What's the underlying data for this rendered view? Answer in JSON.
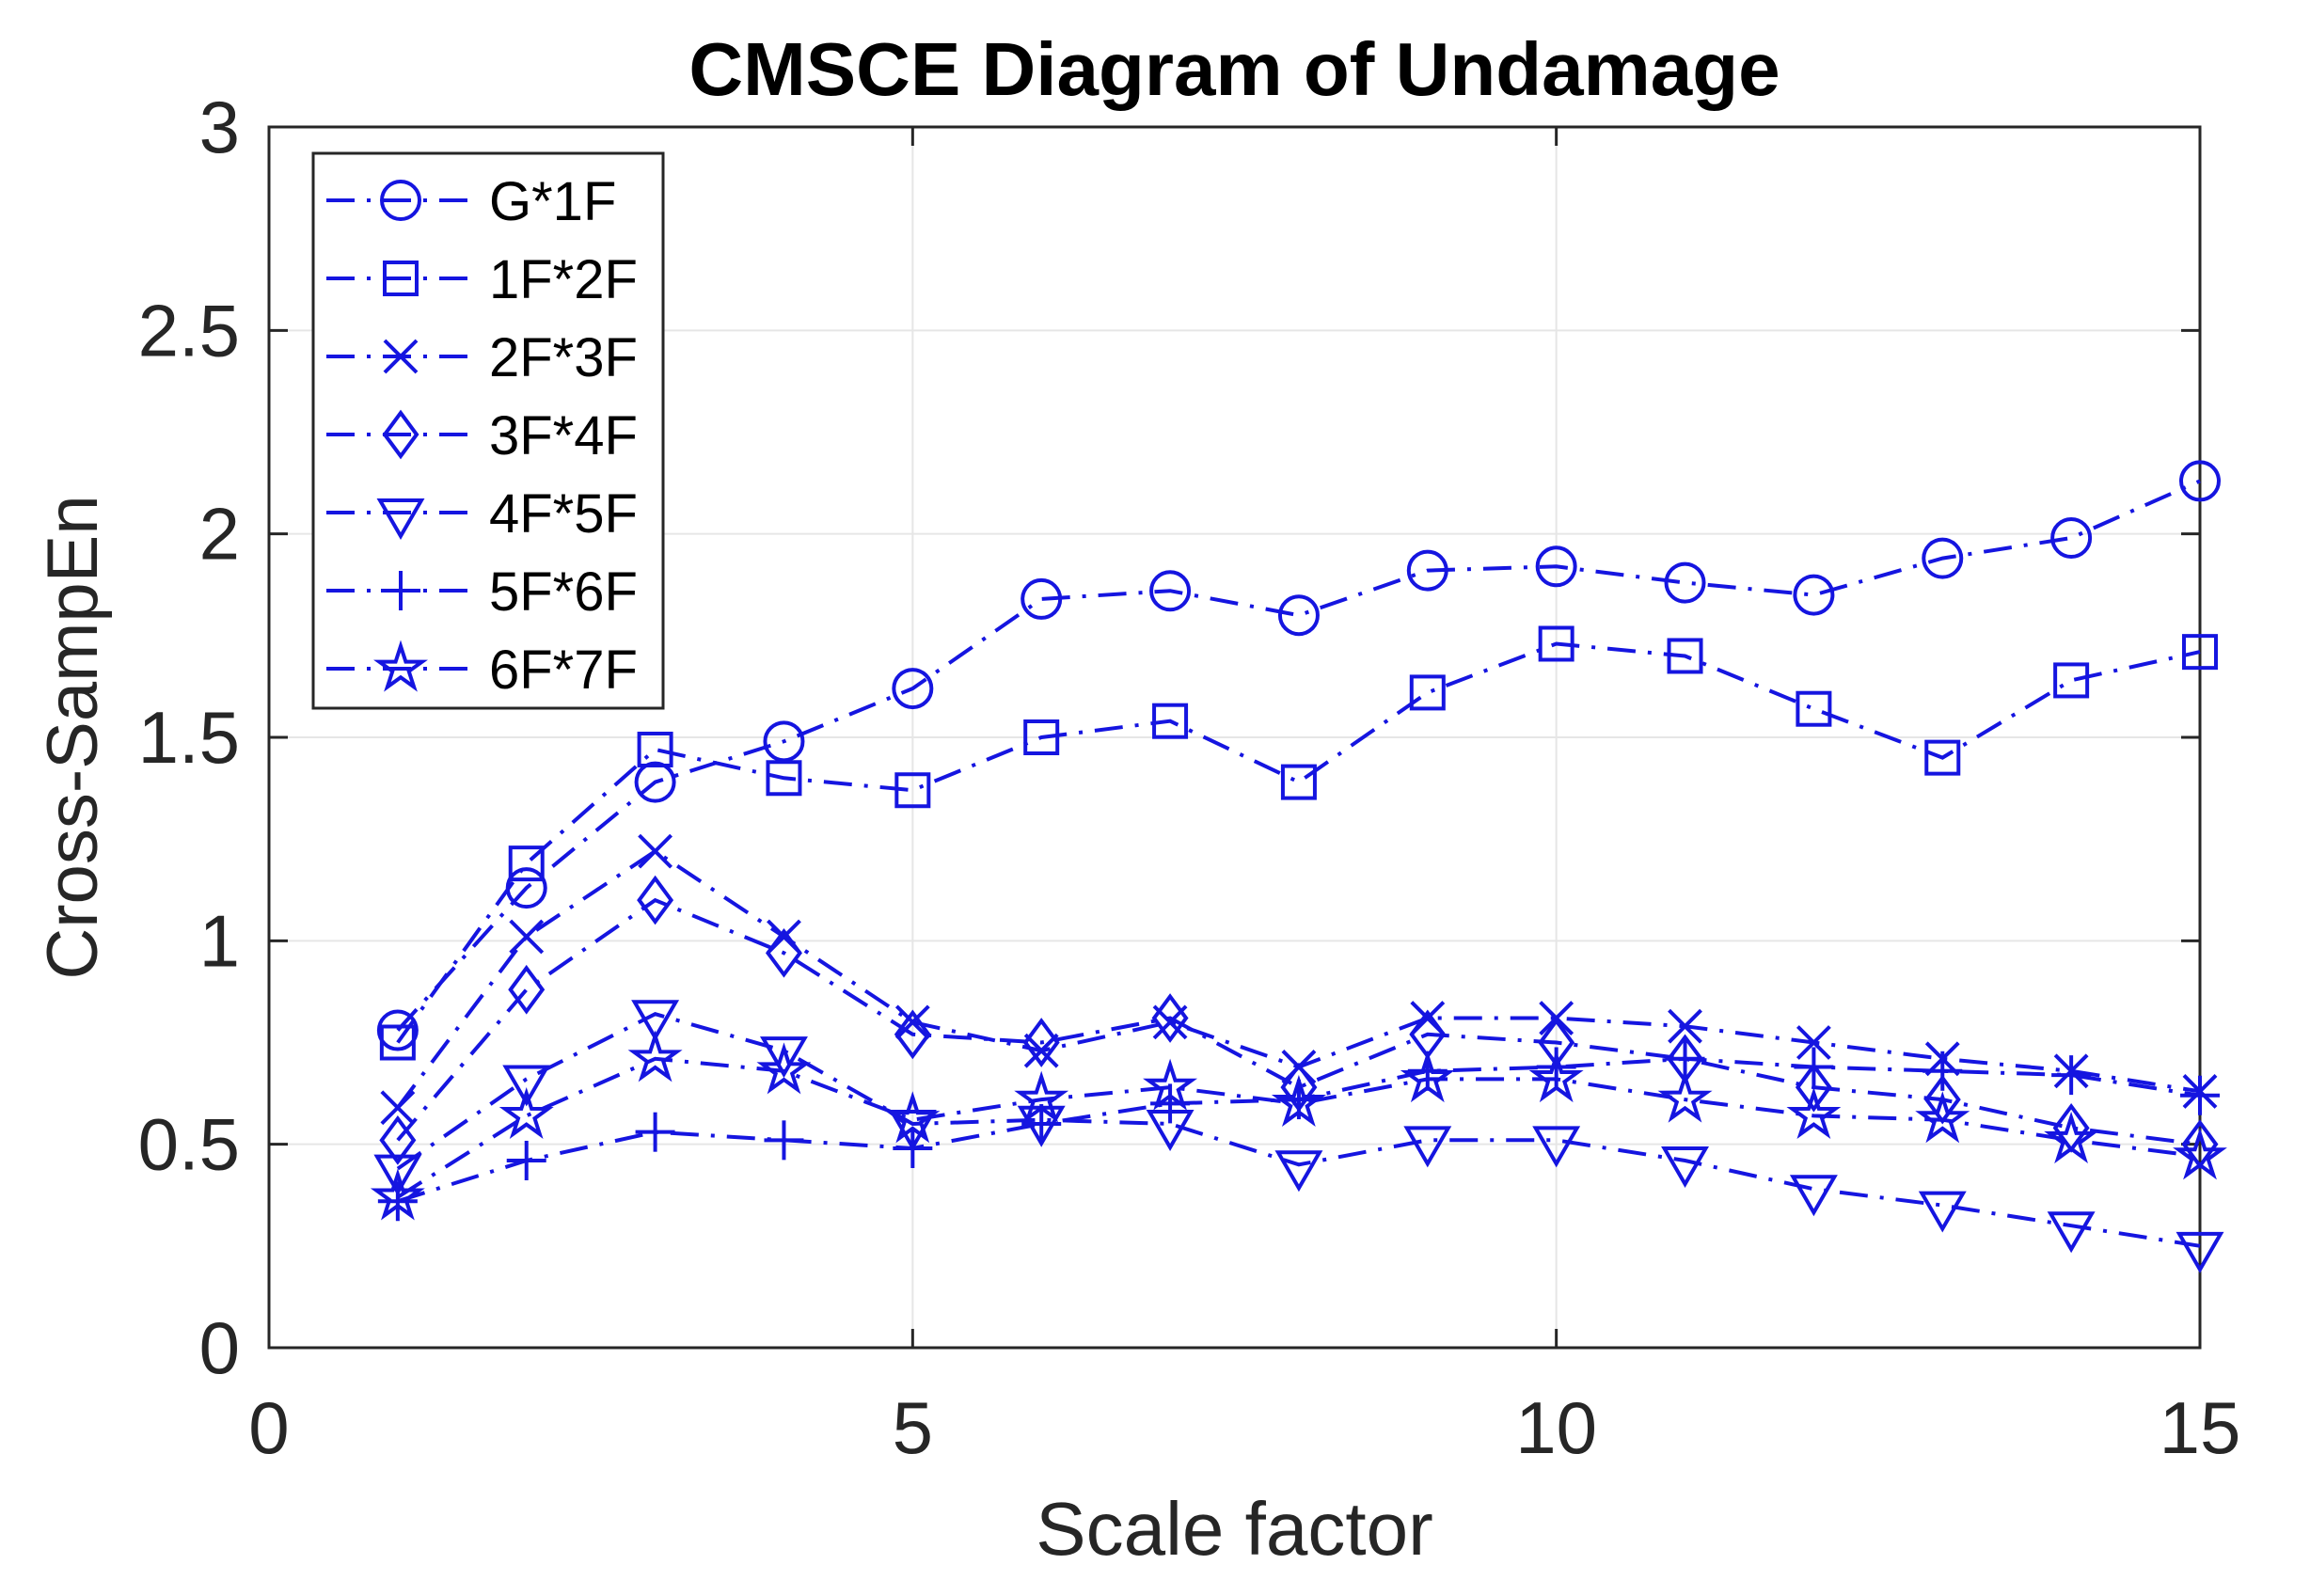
{
  "chart_data": {
    "type": "line",
    "title": "CMSCE Diagram of Undamage",
    "xlabel": "Scale factor",
    "ylabel": "Cross-SampEn",
    "xlim": [
      0,
      15
    ],
    "ylim": [
      0,
      3
    ],
    "x_tick_values": [
      0,
      5,
      10,
      15
    ],
    "x_tick_labels": [
      "0",
      "5",
      "10",
      "15"
    ],
    "y_tick_values": [
      0,
      0.5,
      1,
      1.5,
      2,
      2.5,
      3
    ],
    "y_tick_labels": [
      "0",
      "0.5",
      "1",
      "1.5",
      "2",
      "2.5",
      "3"
    ],
    "grid": true,
    "legend_position": "top-left",
    "line_style": "dash-dot",
    "line_color": "#1515E0",
    "axis_color": "#262626",
    "grid_color": "#E6E6E6",
    "x": [
      1,
      2,
      3,
      4,
      5,
      6,
      7,
      8,
      9,
      10,
      11,
      12,
      13,
      14,
      15
    ],
    "series": [
      {
        "name": "G*1F",
        "marker": "circle",
        "values": [
          0.78,
          1.13,
          1.39,
          1.49,
          1.62,
          1.84,
          1.86,
          1.8,
          1.91,
          1.92,
          1.88,
          1.85,
          1.94,
          1.99,
          2.13
        ]
      },
      {
        "name": "1F*2F",
        "marker": "square",
        "values": [
          0.75,
          1.19,
          1.47,
          1.4,
          1.37,
          1.5,
          1.54,
          1.39,
          1.61,
          1.73,
          1.7,
          1.57,
          1.45,
          1.64,
          1.71
        ]
      },
      {
        "name": "2F*3F",
        "marker": "x",
        "values": [
          0.59,
          1.01,
          1.22,
          1.01,
          0.8,
          0.73,
          0.8,
          0.69,
          0.81,
          0.81,
          0.79,
          0.75,
          0.71,
          0.68,
          0.63
        ]
      },
      {
        "name": "3F*4F",
        "marker": "diamond",
        "values": [
          0.51,
          0.88,
          1.1,
          0.97,
          0.77,
          0.75,
          0.81,
          0.64,
          0.77,
          0.75,
          0.71,
          0.64,
          0.61,
          0.54,
          0.5
        ]
      },
      {
        "name": "4F*5F",
        "marker": "triangle",
        "values": [
          0.44,
          0.66,
          0.82,
          0.73,
          0.55,
          0.56,
          0.55,
          0.45,
          0.51,
          0.51,
          0.46,
          0.39,
          0.35,
          0.3,
          0.25
        ]
      },
      {
        "name": "5F*6F",
        "marker": "plus",
        "values": [
          0.36,
          0.46,
          0.53,
          0.51,
          0.49,
          0.55,
          0.6,
          0.61,
          0.68,
          0.69,
          0.71,
          0.69,
          0.68,
          0.67,
          0.62
        ]
      },
      {
        "name": "6F*7F",
        "marker": "star",
        "values": [
          0.37,
          0.57,
          0.71,
          0.68,
          0.56,
          0.61,
          0.64,
          0.6,
          0.66,
          0.66,
          0.61,
          0.57,
          0.56,
          0.51,
          0.47
        ]
      }
    ]
  }
}
